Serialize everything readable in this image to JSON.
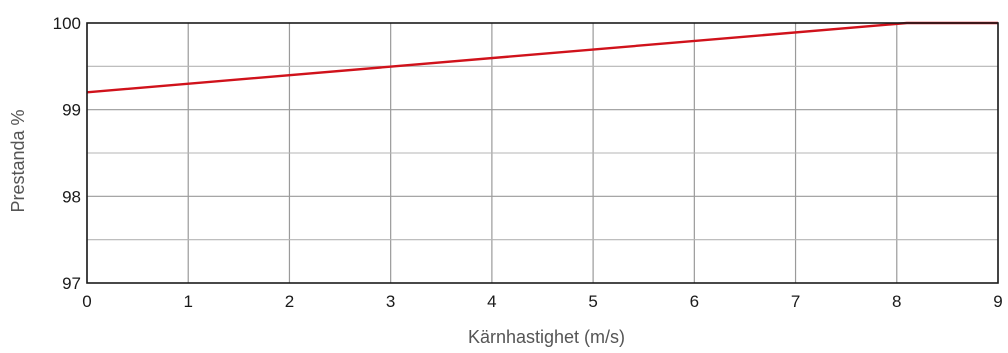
{
  "chart_data": {
    "type": "line",
    "title": "",
    "xlabel": "Kärnhastighet (m/s)",
    "ylabel": "Prestanda %",
    "xlim": [
      0,
      9
    ],
    "ylim": [
      97,
      100
    ],
    "x_ticks": [
      "0",
      "1",
      "2",
      "3",
      "4",
      "5",
      "6",
      "7",
      "8",
      "9"
    ],
    "y_ticks": [
      "97",
      "98",
      "99",
      "100"
    ],
    "grid": true,
    "y_minor_grid": true,
    "legend": "none",
    "series": [
      {
        "color": "#d0121b",
        "x": [
          0,
          8.1,
          9
        ],
        "y": [
          99.2,
          100.0,
          100.0
        ]
      }
    ]
  }
}
